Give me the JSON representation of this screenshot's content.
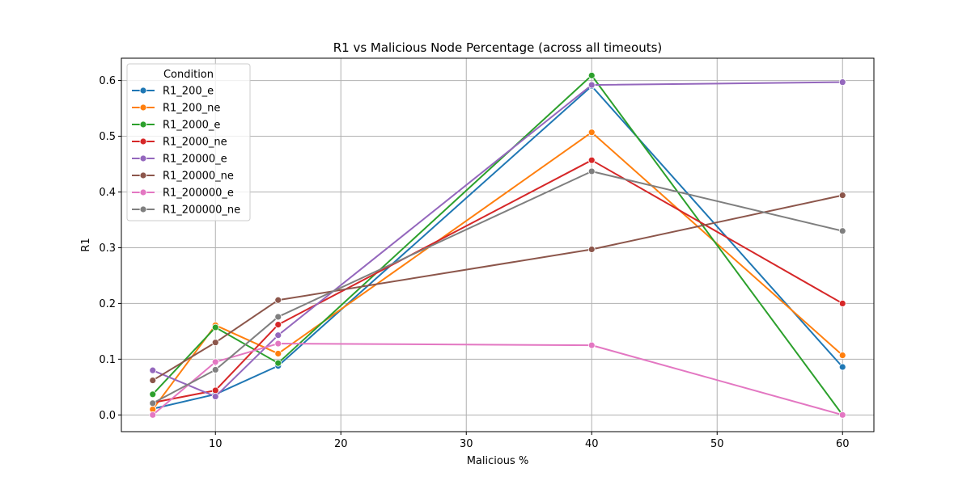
{
  "chart_data": {
    "type": "line",
    "title": "R1 vs Malicious Node Percentage (across all timeouts)",
    "xlabel": "Malicious %",
    "ylabel": "R1",
    "xlim": [
      2.5,
      62.5
    ],
    "ylim": [
      -0.03,
      0.64
    ],
    "xticks": [
      10,
      20,
      30,
      40,
      50,
      60
    ],
    "yticks": [
      0.0,
      0.1,
      0.2,
      0.3,
      0.4,
      0.5,
      0.6
    ],
    "grid": true,
    "legend": {
      "title": "Condition",
      "placement": "top-left"
    },
    "x": [
      5,
      10,
      15,
      40,
      60
    ],
    "series": [
      {
        "name": "R1_200_e",
        "color": "#1f77b4",
        "values": [
          0.011,
          0.037,
          0.088,
          0.59,
          0.086
        ]
      },
      {
        "name": "R1_200_ne",
        "color": "#ff7f0e",
        "values": [
          0.01,
          0.161,
          0.11,
          0.507,
          0.107
        ]
      },
      {
        "name": "R1_2000_e",
        "color": "#2ca02c",
        "values": [
          0.037,
          0.157,
          0.093,
          0.609,
          0.0
        ]
      },
      {
        "name": "R1_2000_ne",
        "color": "#d62728",
        "values": [
          0.022,
          0.044,
          0.162,
          0.457,
          0.2
        ]
      },
      {
        "name": "R1_20000_e",
        "color": "#9467bd",
        "values": [
          0.08,
          0.033,
          0.143,
          0.592,
          0.597
        ]
      },
      {
        "name": "R1_20000_ne",
        "color": "#8c564b",
        "values": [
          0.062,
          0.13,
          0.206,
          0.297,
          0.394
        ]
      },
      {
        "name": "R1_200000_e",
        "color": "#e377c2",
        "values": [
          0.0,
          0.095,
          0.128,
          0.125,
          0.0
        ]
      },
      {
        "name": "R1_200000_ne",
        "color": "#7f7f7f",
        "values": [
          0.021,
          0.081,
          0.176,
          0.437,
          0.33
        ]
      }
    ]
  }
}
